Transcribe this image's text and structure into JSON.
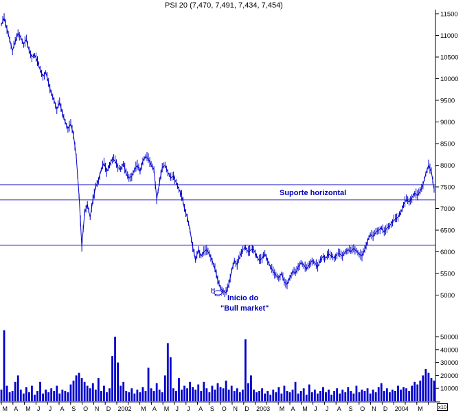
{
  "chart_data": {
    "type": "line",
    "title": "PSI 20 (7,470, 7,491, 7,434, 7,454)",
    "series_name": "PSI 20",
    "last_ohlc": {
      "open": 7470,
      "high": 7491,
      "low": 7434,
      "close": 7454
    },
    "x_axis": {
      "start": "Mar 2001",
      "end": "Apr 2004",
      "months_total": 37.5,
      "labels": [
        "M",
        "A",
        "M",
        "J",
        "J",
        "A",
        "S",
        "O",
        "N",
        "D",
        "2002",
        "M",
        "A",
        "M",
        "J",
        "J",
        "A",
        "S",
        "O",
        "N",
        "D",
        "2003",
        "M",
        "A",
        "M",
        "J",
        "J",
        "A",
        "S",
        "O",
        "N",
        "D",
        "2004",
        "M"
      ],
      "label_month_index": [
        0,
        1,
        2,
        3,
        4,
        5,
        6,
        7,
        8,
        9,
        10,
        12,
        13,
        14,
        15,
        16,
        17,
        18,
        19,
        20,
        21,
        22,
        24,
        25,
        26,
        27,
        28,
        29,
        30,
        31,
        32,
        33,
        34,
        36
      ]
    },
    "price_axis": {
      "ticks": [
        11500,
        11000,
        10500,
        10000,
        9500,
        9000,
        8500,
        8000,
        7500,
        7000,
        6500,
        6000,
        5500,
        5000
      ],
      "min": 4800,
      "max": 11600
    },
    "volume_axis": {
      "ticks": [
        50000,
        40000,
        30000,
        20000,
        10000
      ],
      "unit_label": "x10",
      "max": 55000
    },
    "support_lines": [
      7550,
      7200,
      6150
    ],
    "annotations": [
      {
        "text": "Suporte horizontal",
        "anchor_price": 7200
      },
      {
        "text": "Início do",
        "anchor_price": 5050
      },
      {
        "text": "\"Bull market\"",
        "anchor_price": 5050
      }
    ],
    "prices": [
      11250,
      11400,
      11150,
      10900,
      10650,
      10850,
      11050,
      10950,
      10800,
      10900,
      10650,
      10500,
      10550,
      10400,
      10200,
      10050,
      10150,
      9900,
      9650,
      9500,
      9300,
      9450,
      9200,
      9000,
      8850,
      8950,
      8700,
      8200,
      7300,
      6120,
      6900,
      7100,
      6800,
      7200,
      7500,
      7650,
      7900,
      8050,
      7850,
      8000,
      8150,
      8100,
      7950,
      7900,
      8050,
      7800,
      7700,
      7750,
      7900,
      8000,
      7850,
      8100,
      8200,
      8150,
      8000,
      7900,
      7220,
      7600,
      7950,
      8000,
      7850,
      7700,
      7750,
      7600,
      7450,
      7300,
      7000,
      6800,
      6500,
      6100,
      5800,
      6050,
      5900,
      6000,
      6050,
      5950,
      5800,
      5600,
      5350,
      5150,
      5100,
      5050,
      5250,
      5550,
      5800,
      5700,
      5900,
      6050,
      6100,
      6000,
      6050,
      6050,
      5900,
      5800,
      5850,
      5950,
      5800,
      5650,
      5550,
      5450,
      5400,
      5500,
      5300,
      5250,
      5400,
      5550,
      5500,
      5650,
      5750,
      5700,
      5600,
      5700,
      5800,
      5750,
      5650,
      5800,
      5900,
      5850,
      5950,
      5900,
      5850,
      5950,
      5950,
      5900,
      6000,
      6050,
      6000,
      6080,
      6020,
      5950,
      5900,
      6050,
      6250,
      6400,
      6350,
      6450,
      6500,
      6550,
      6450,
      6550,
      6600,
      6700,
      6750,
      6800,
      6900,
      7100,
      7200,
      7150,
      7250,
      7350,
      7300,
      7400,
      7550,
      7800,
      8000,
      7850,
      7450
    ],
    "volumes": [
      9000,
      55000,
      12000,
      7000,
      8000,
      15000,
      20000,
      9000,
      6000,
      11000,
      7000,
      12000,
      5000,
      8000,
      15000,
      6000,
      9000,
      7000,
      10000,
      8000,
      12000,
      6000,
      9000,
      8000,
      7000,
      13000,
      16000,
      20000,
      22000,
      18000,
      15000,
      12000,
      10000,
      14000,
      9000,
      18000,
      8000,
      12000,
      7000,
      10000,
      35000,
      50000,
      30000,
      12000,
      15000,
      8000,
      7000,
      10000,
      6000,
      9000,
      7000,
      11000,
      8000,
      26000,
      10000,
      8000,
      14000,
      9000,
      7000,
      20000,
      45000,
      34000,
      10000,
      8000,
      18000,
      9000,
      12000,
      10000,
      15000,
      11000,
      9000,
      13000,
      8000,
      15000,
      10000,
      7000,
      12000,
      9000,
      14000,
      11000,
      10000,
      16000,
      9000,
      12000,
      8000,
      10000,
      7000,
      9000,
      48000,
      14000,
      20000,
      9000,
      7000,
      8000,
      10000,
      6000,
      8000,
      5000,
      9000,
      7000,
      11000,
      6000,
      12000,
      8000,
      7000,
      9000,
      15000,
      6000,
      8000,
      10000,
      5000,
      13000,
      7000,
      9000,
      6000,
      8000,
      11000,
      7000,
      9000,
      5000,
      8000,
      10000,
      6000,
      9000,
      7000,
      11000,
      8000,
      6000,
      12000,
      7000,
      9000,
      8000,
      10000,
      6000,
      9000,
      7000,
      11000,
      14000,
      8000,
      10000,
      7000,
      9000,
      8000,
      12000,
      9000,
      11000,
      10000,
      8000,
      12000,
      15000,
      13000,
      16000,
      20000,
      25000,
      22000,
      18000,
      16000
    ],
    "colors": {
      "price": "#0000cc",
      "volume": "#0000cc",
      "support_line": "#3333cc",
      "annotation": "#0000b8",
      "axis": "#000000"
    },
    "grid": false,
    "legend_position": "none"
  }
}
